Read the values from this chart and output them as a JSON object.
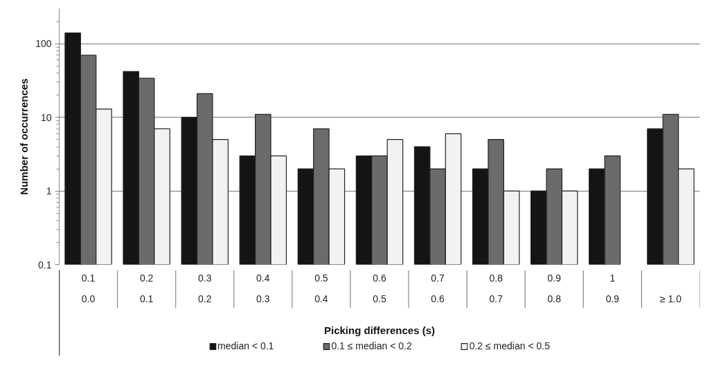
{
  "chart_data": {
    "type": "bar",
    "xlabel": "Picking differences (s)",
    "ylabel": "Number of occurrences",
    "categories": [
      "0.1\n0.0",
      "0.2\n0.1",
      "0.3\n0.2",
      "0.4\n0.3",
      "0.5\n0.4",
      "0.6\n0.5",
      "0.7\n0.6",
      "0.8\n0.7",
      "0.9\n0.8",
      "1\n0.9",
      "≥ 1.0"
    ],
    "series": [
      {
        "name": "median < 0.1",
        "color": "#141414",
        "values": [
          140,
          42,
          10,
          3,
          2,
          3,
          4,
          2,
          1,
          2,
          7
        ]
      },
      {
        "name": "0.1 ≤ median < 0.2",
        "color": "#6b6b6b",
        "values": [
          70,
          34,
          21,
          11,
          7,
          3,
          2,
          5,
          2,
          3,
          11
        ]
      },
      {
        "name": "0.2 ≤ median < 0.5",
        "color": "#f2f2f2",
        "values": [
          13,
          7,
          5,
          3,
          2,
          5,
          6,
          1,
          1,
          null,
          2
        ]
      }
    ],
    "log": true,
    "ylim": [
      0.1,
      300
    ],
    "yticks": [
      0.1,
      1,
      10,
      100
    ],
    "grid": "y",
    "legend": "bottom"
  }
}
